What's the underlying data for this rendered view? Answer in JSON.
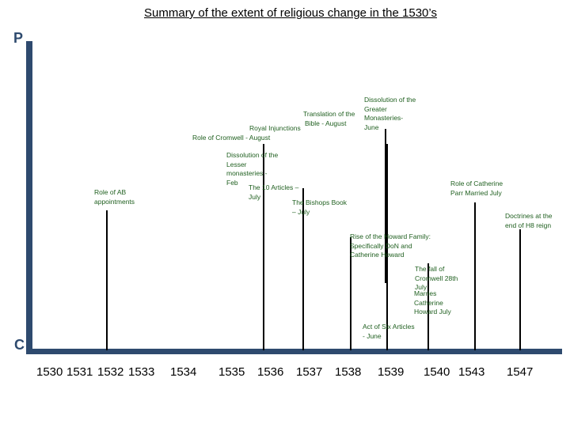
{
  "title": "Summary of the extent of religious change in the 1530’s",
  "axis": {
    "top_label": "P",
    "bottom_label": "C"
  },
  "years": [
    "1530",
    "1531",
    "1532",
    "1533",
    "1534",
    "1535",
    "1536",
    "1537",
    "1538",
    "1539",
    "1540",
    "1543",
    "1547"
  ],
  "events": [
    {
      "id": "ab",
      "lines": [
        "Role of AB",
        "appointments"
      ]
    },
    {
      "id": "cromwell",
      "lines": [
        "Role of Cromwell - August"
      ]
    },
    {
      "id": "lesser",
      "lines": [
        "Dissolution of the",
        "Lesser",
        "monasteries -",
        "Feb"
      ]
    },
    {
      "id": "ten",
      "lines": [
        "The 10 Articles –",
        "July"
      ]
    },
    {
      "id": "injunctions",
      "lines": [
        "Royal Injunctions"
      ]
    },
    {
      "id": "translation",
      "lines": [
        "Translation of the",
        "Bible - August"
      ]
    },
    {
      "id": "bishops",
      "lines": [
        "The Bishops Book",
        "– July"
      ]
    },
    {
      "id": "greater",
      "lines": [
        "Dissolution of the",
        "Greater",
        "Monasteries-",
        "June"
      ]
    },
    {
      "id": "howard",
      "lines": [
        "Rise of the Howard Family:",
        "Specifically DoN and",
        "Catherine Howard"
      ]
    },
    {
      "id": "six",
      "lines": [
        "Act of Six Articles",
        "- June"
      ]
    },
    {
      "id": "fall",
      "lines": [
        "The fall of",
        "Cromwell 28th",
        "July"
      ]
    },
    {
      "id": "marries",
      "lines": [
        "Marries",
        "Catherine",
        "Howard July"
      ]
    },
    {
      "id": "parr",
      "lines": [
        "Role of Catherine",
        "Parr Married July"
      ]
    },
    {
      "id": "doctrines",
      "lines": [
        "Doctrines at the",
        "end of H8 reign"
      ]
    }
  ]
}
